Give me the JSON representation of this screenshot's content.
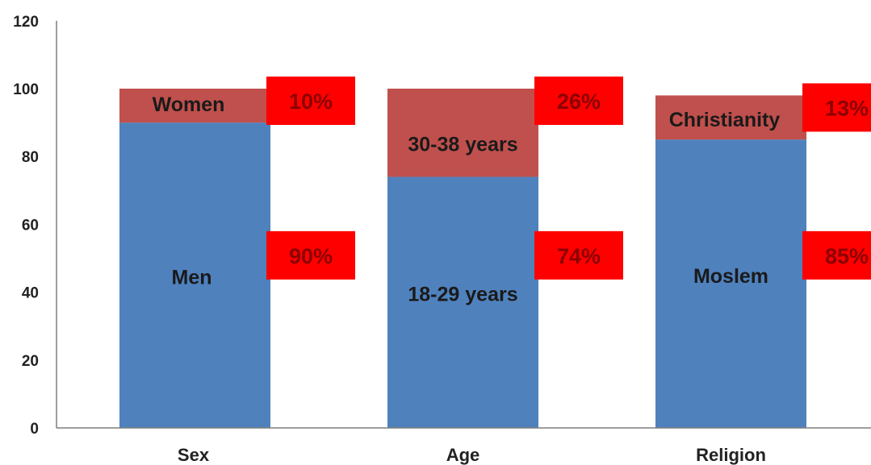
{
  "colors": {
    "lower_segment": "#4f81bd",
    "upper_segment": "#c0504d",
    "callout_fill": "#ff0000",
    "callout_text": "#8b0000",
    "axis": "#7f7f7f"
  },
  "chart_data": {
    "type": "bar",
    "stacked": true,
    "title": "",
    "xlabel": "",
    "ylabel": "",
    "ylim": [
      0,
      120
    ],
    "yticks": [
      "0",
      "20",
      "40",
      "60",
      "80",
      "100",
      "120"
    ],
    "grid": false,
    "legend": "none",
    "categories": [
      "Sex",
      "Age",
      "Religion"
    ],
    "series": [
      {
        "values": [
          90,
          74,
          85
        ],
        "segment_labels": [
          "Men",
          "18-29 years",
          "Moslem"
        ],
        "percent_labels": [
          "90%",
          "74%",
          "85%"
        ]
      },
      {
        "values": [
          10,
          26,
          13
        ],
        "segment_labels": [
          "Women",
          "30-38 years",
          "Christianity"
        ],
        "percent_labels": [
          "10%",
          "26%",
          "13%"
        ]
      }
    ]
  }
}
